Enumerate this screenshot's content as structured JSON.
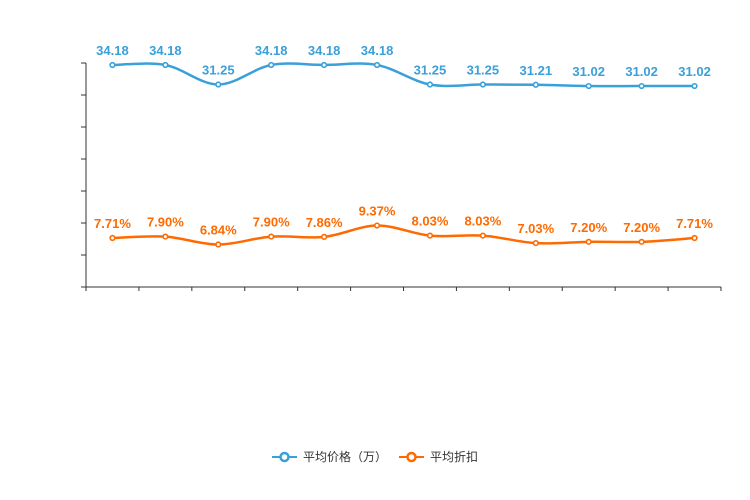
{
  "chart_data": {
    "type": "line",
    "smooth": true,
    "title": "",
    "x_axis": {
      "labels_visible": false,
      "tick_count": 13
    },
    "y_axis": {
      "labels_visible": false,
      "tick_count": 8
    },
    "grid": false,
    "legend": {
      "position": "bottom"
    },
    "axis_color": "#333333",
    "background_color": "#ffffff",
    "marker_style": "empty-circle",
    "series": [
      {
        "name": "平均价格（万）",
        "color": "#3AA0D9",
        "label_suffix": "",
        "values": [
          34.18,
          34.18,
          31.25,
          34.18,
          34.18,
          34.18,
          31.25,
          31.25,
          31.21,
          31.02,
          31.02,
          31.02
        ]
      },
      {
        "name": "平均折扣",
        "color": "#FF6A00",
        "label_suffix": "%",
        "values": [
          7.71,
          7.9,
          6.84,
          7.9,
          7.86,
          9.37,
          8.03,
          8.03,
          7.03,
          7.2,
          7.2,
          7.71
        ]
      }
    ]
  }
}
